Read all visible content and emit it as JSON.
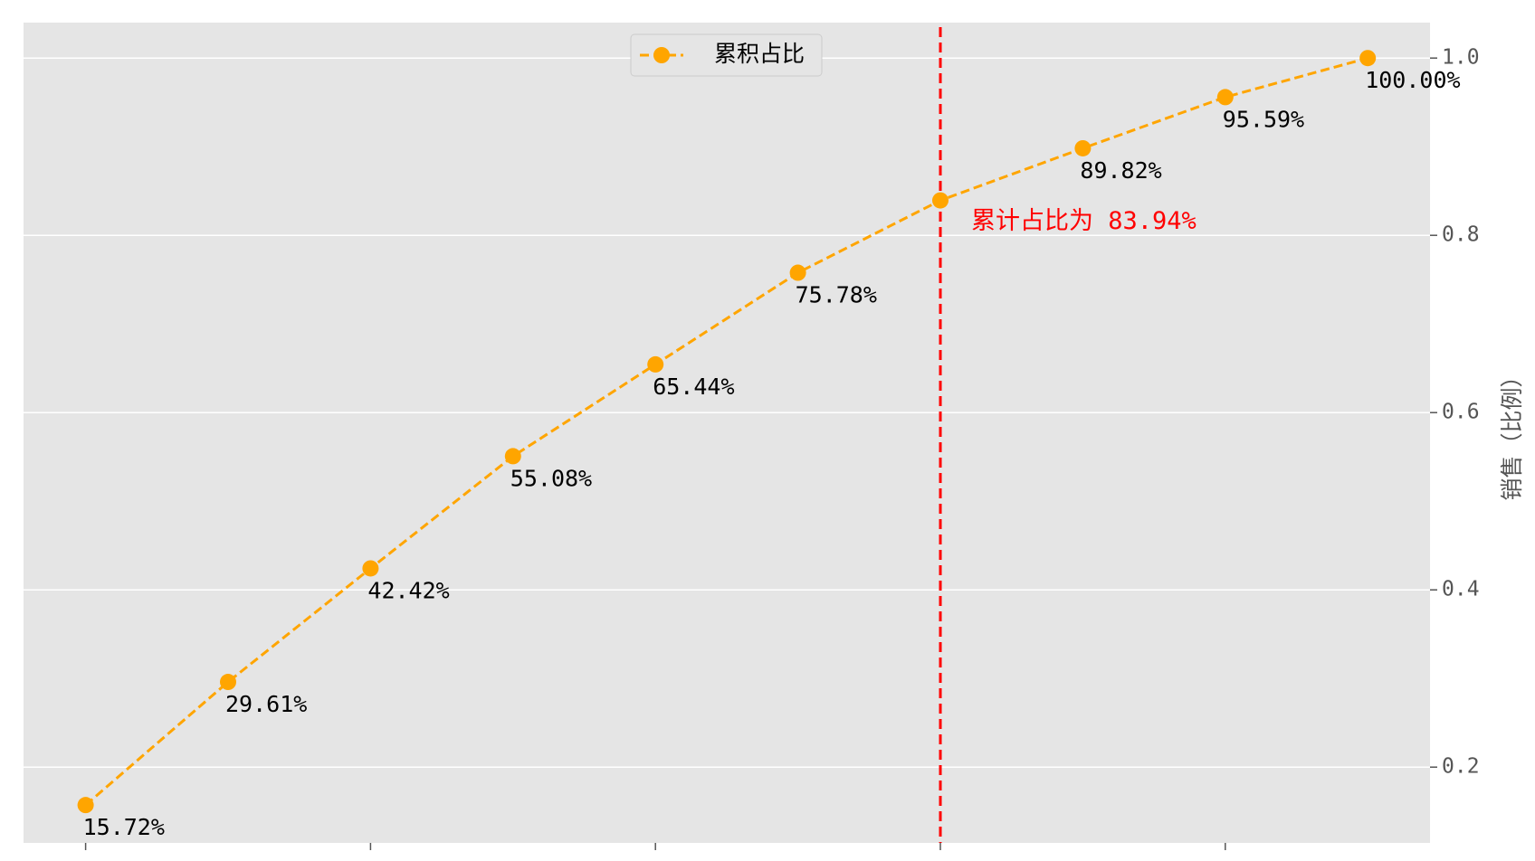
{
  "chart_data": {
    "type": "line",
    "categories": [
      null,
      null,
      null,
      null,
      null,
      null,
      null,
      null,
      null,
      null
    ],
    "series": [
      {
        "name": "累积占比",
        "color": "orange",
        "values": [
          0.1572,
          0.2961,
          0.4242,
          0.5508,
          0.6544,
          0.7578,
          0.8394,
          0.8982,
          0.9559,
          1.0
        ],
        "value_labels": [
          "15.72%",
          "29.61%",
          "42.42%",
          "55.08%",
          "65.44%",
          "75.78%",
          null,
          "89.82%",
          "95.59%",
          "100.00%"
        ]
      }
    ],
    "ylim": [
      0.1145,
      1.04
    ],
    "yticks": [
      0.2,
      0.4,
      0.6,
      0.8,
      {
        "value": 1.0,
        "label": "1.0"
      }
    ],
    "y_label": "销售（比例）",
    "y_axis_side": "right",
    "grid": true,
    "legend": "upper center",
    "vline": {
      "x": 6,
      "color": "red"
    },
    "annotation": "累计占比为 83.94%"
  }
}
